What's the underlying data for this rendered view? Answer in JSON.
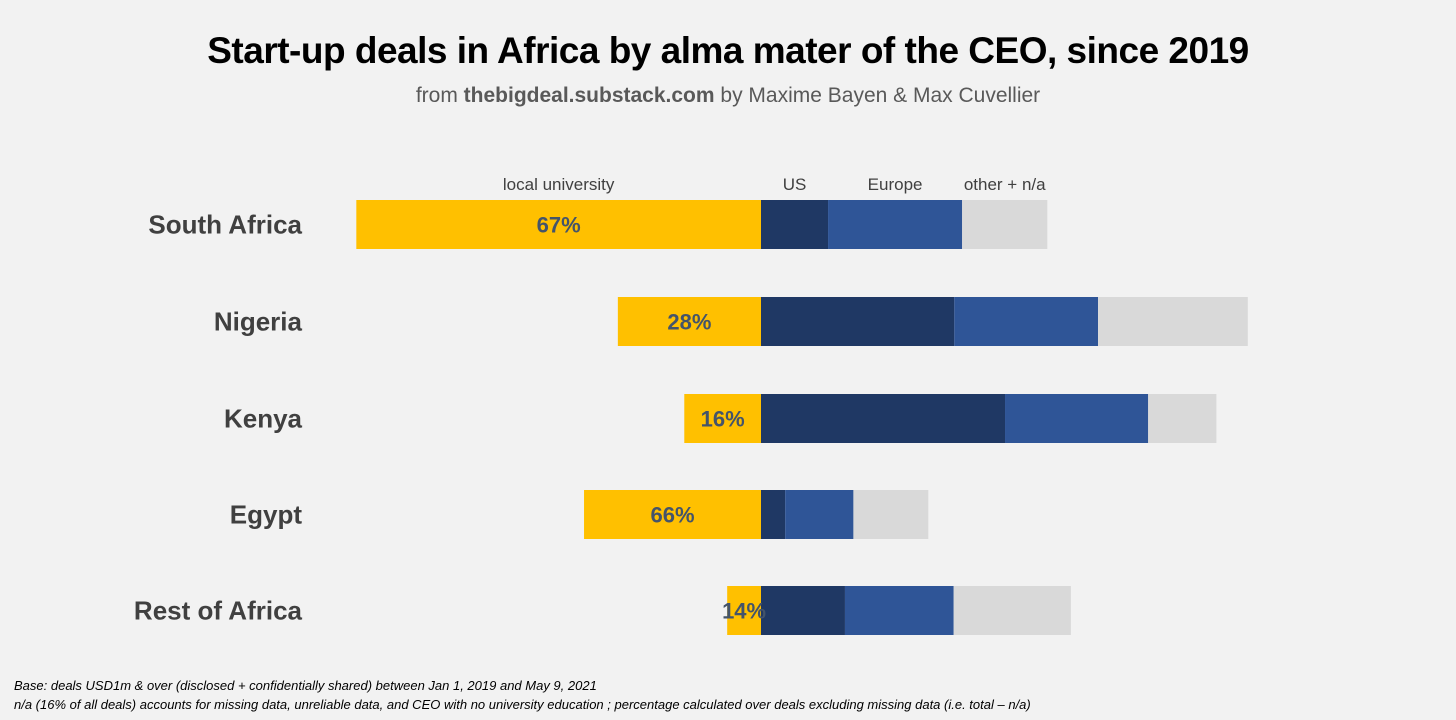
{
  "title": "Start-up deals in Africa by alma mater of the CEO, since 2019",
  "subtitle": {
    "prefix": "from ",
    "site": "thebigdeal.substack.com",
    "suffix": " by Maxime Bayen & Max Cuvellier"
  },
  "notes": [
    "Base: deals USD1m & over (disclosed + confidentially shared) between Jan 1, 2019 and May 9, 2021",
    "n/a  (16% of all deals) accounts for missing data, unreliable data, and CEO with no university education ; percentage calculated over deals excluding missing data (i.e. total – n/a)"
  ],
  "chart_data": {
    "type": "bar",
    "orientation": "horizontal-diverging-stacked",
    "title": "Start-up deals in Africa by alma mater of the CEO, since 2019",
    "categories": [
      "South Africa",
      "Nigeria",
      "Kenya",
      "Egypt",
      "Rest of Africa"
    ],
    "series": [
      {
        "name": "local university",
        "color": "#ffc000",
        "direction": "left",
        "values": [
          67,
          23.7,
          12.7,
          29.3,
          5.6
        ]
      },
      {
        "name": "US",
        "color": "#1f3864",
        "direction": "right",
        "values": [
          11.1,
          32.0,
          40.4,
          4.0,
          13.9
        ]
      },
      {
        "name": "Europe",
        "color": "#2f5597",
        "direction": "right",
        "values": [
          22.2,
          23.8,
          23.7,
          11.3,
          18.0
        ]
      },
      {
        "name": "other + n/a",
        "color": "#d9d9d9",
        "direction": "right",
        "values": [
          14.1,
          24.8,
          11.3,
          12.4,
          19.4
        ]
      }
    ],
    "data_labels": [
      "67%",
      "28%",
      "16%",
      "66%",
      "14%"
    ],
    "legend": "top, above first bar",
    "grid": false
  }
}
